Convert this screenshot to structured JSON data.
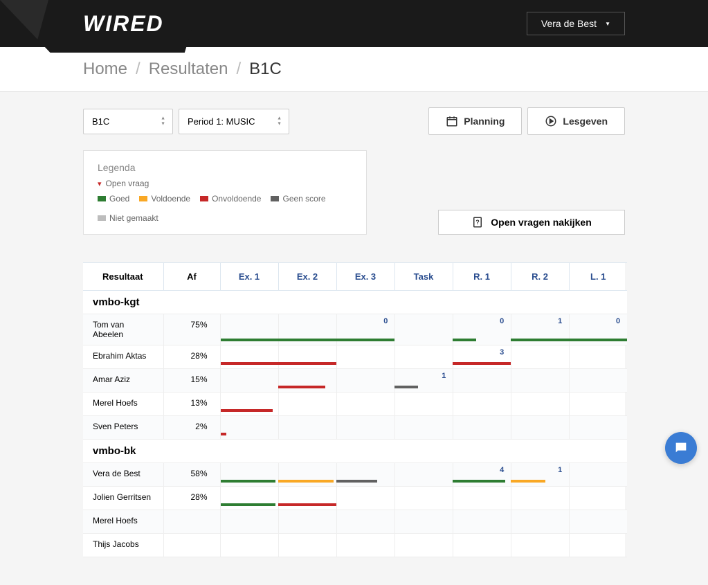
{
  "brand": "WIRED",
  "user": {
    "name": "Vera de Best"
  },
  "breadcrumb": {
    "items": [
      "Home",
      "Resultaten"
    ],
    "current": "B1C"
  },
  "selectors": {
    "class": "B1C",
    "period": "Period 1: MUSIC"
  },
  "buttons": {
    "planning": "Planning",
    "lesgeven": "Lesgeven",
    "open_vragen": "Open vragen nakijken"
  },
  "legend": {
    "title": "Legenda",
    "open_vraag": "Open vraag",
    "goed": "Goed",
    "voldoende": "Voldoende",
    "onvoldoende": "Onvoldoende",
    "geen_score": "Geen score",
    "niet_gemaakt": "Niet gemaakt"
  },
  "colors": {
    "good": "#2e7d32",
    "sufficient": "#f9a825",
    "insufficient": "#c62828",
    "noscore": "#616161",
    "notdone": "#bdbdbd",
    "link": "#2a4d8f"
  },
  "table": {
    "headers": {
      "resultaat": "Resultaat",
      "af": "Af",
      "columns": [
        "Ex. 1",
        "Ex. 2",
        "Ex. 3",
        "Task",
        "R. 1",
        "R. 2",
        "L. 1"
      ]
    },
    "col_count": 7,
    "groups": [
      {
        "name": "vmbo-kgt",
        "students": [
          {
            "name": "Tom van Abeelen",
            "pct": "75%",
            "counts": [
              {
                "col": 2,
                "value": "0",
                "align": "right"
              },
              {
                "col": 4,
                "value": "0",
                "align": "right"
              },
              {
                "col": 5,
                "value": "1",
                "align": "right"
              },
              {
                "col": 6,
                "value": "0",
                "align": "right"
              }
            ],
            "bars": [
              {
                "color": "green",
                "start": 0,
                "end": 3
              },
              {
                "color": "green",
                "start": 4,
                "end": 4.4
              },
              {
                "color": "green",
                "start": 5,
                "end": 7
              }
            ]
          },
          {
            "name": "Ebrahim Aktas",
            "pct": "28%",
            "counts": [
              {
                "col": 4,
                "value": "3",
                "align": "right"
              }
            ],
            "bars": [
              {
                "color": "red",
                "start": 0,
                "end": 2
              },
              {
                "color": "red",
                "start": 4,
                "end": 5
              }
            ]
          },
          {
            "name": "Amar Aziz",
            "pct": "15%",
            "counts": [
              {
                "col": 3,
                "value": "1",
                "align": "right"
              }
            ],
            "bars": [
              {
                "color": "red",
                "start": 1,
                "end": 1.8
              },
              {
                "color": "darkgray",
                "start": 3,
                "end": 3.4
              }
            ]
          },
          {
            "name": "Merel Hoefs",
            "pct": "13%",
            "counts": [],
            "bars": [
              {
                "color": "red",
                "start": 0,
                "end": 0.9
              }
            ]
          },
          {
            "name": "Sven Peters",
            "pct": "2%",
            "counts": [],
            "bars": [
              {
                "color": "red",
                "start": 0,
                "end": 0.1
              }
            ]
          }
        ]
      },
      {
        "name": "vmbo-bk",
        "students": [
          {
            "name": "Vera de Best",
            "pct": "58%",
            "counts": [
              {
                "col": 4,
                "value": "4",
                "align": "right"
              },
              {
                "col": 5,
                "value": "1",
                "align": "right"
              }
            ],
            "bars": [
              {
                "color": "green",
                "start": 0,
                "end": 0.95
              },
              {
                "color": "orange",
                "start": 1,
                "end": 1.95
              },
              {
                "color": "darkgray",
                "start": 2,
                "end": 2.7
              },
              {
                "color": "green",
                "start": 4,
                "end": 4.9
              },
              {
                "color": "orange",
                "start": 5,
                "end": 5.6
              }
            ]
          },
          {
            "name": "Jolien Gerritsen",
            "pct": "28%",
            "counts": [],
            "bars": [
              {
                "color": "green",
                "start": 0,
                "end": 0.95
              },
              {
                "color": "red",
                "start": 1,
                "end": 2
              }
            ]
          },
          {
            "name": "Merel Hoefs",
            "pct": "",
            "counts": [],
            "bars": []
          },
          {
            "name": "Thijs Jacobs",
            "pct": "",
            "counts": [],
            "bars": []
          }
        ]
      }
    ]
  }
}
